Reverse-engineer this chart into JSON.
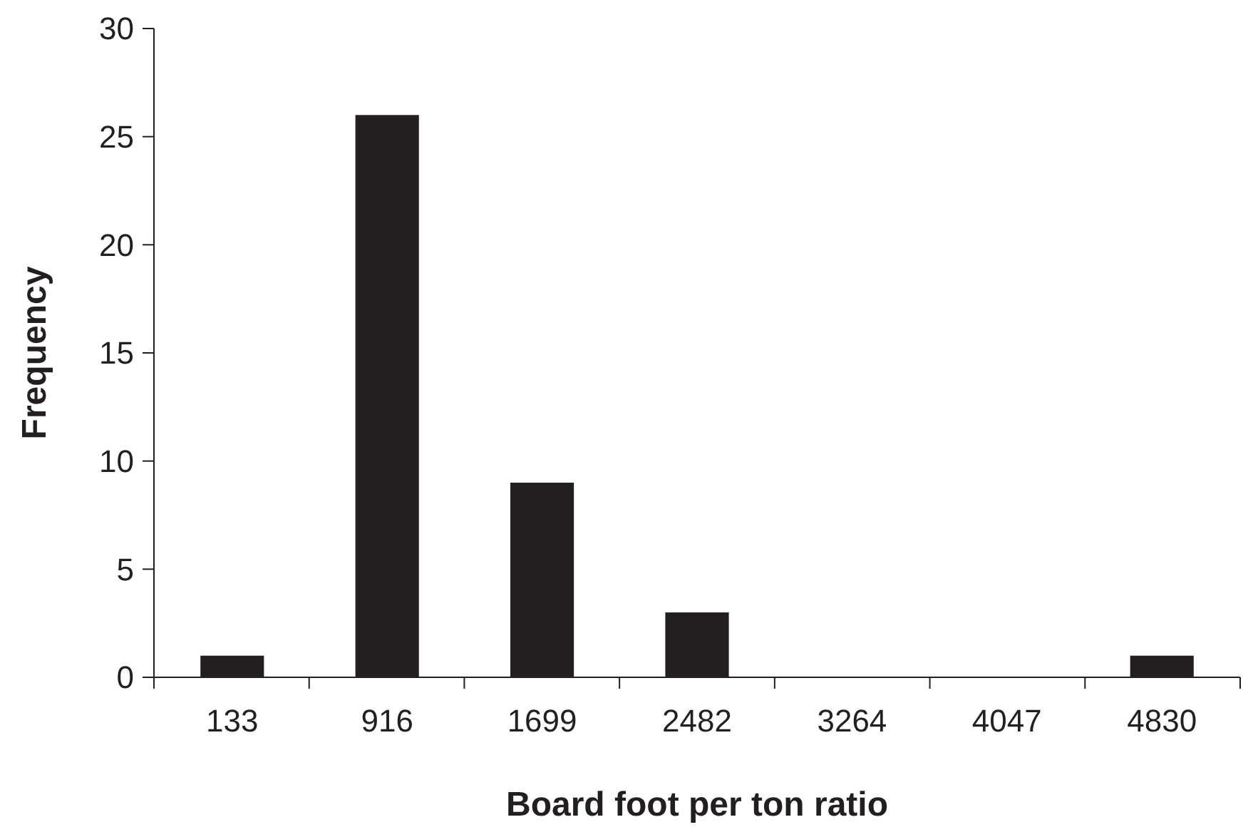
{
  "chart_data": {
    "type": "bar",
    "xlabel": "Board foot per ton ratio",
    "ylabel": "Frequency",
    "categories": [
      "133",
      "916",
      "1699",
      "2482",
      "3264",
      "4047",
      "4830"
    ],
    "values": [
      1,
      26,
      9,
      3,
      0,
      0,
      1
    ],
    "color": "#231f20",
    "ylim": [
      0,
      30
    ],
    "yticks": [
      0,
      5,
      10,
      15,
      20,
      25,
      30
    ],
    "grid": false
  }
}
